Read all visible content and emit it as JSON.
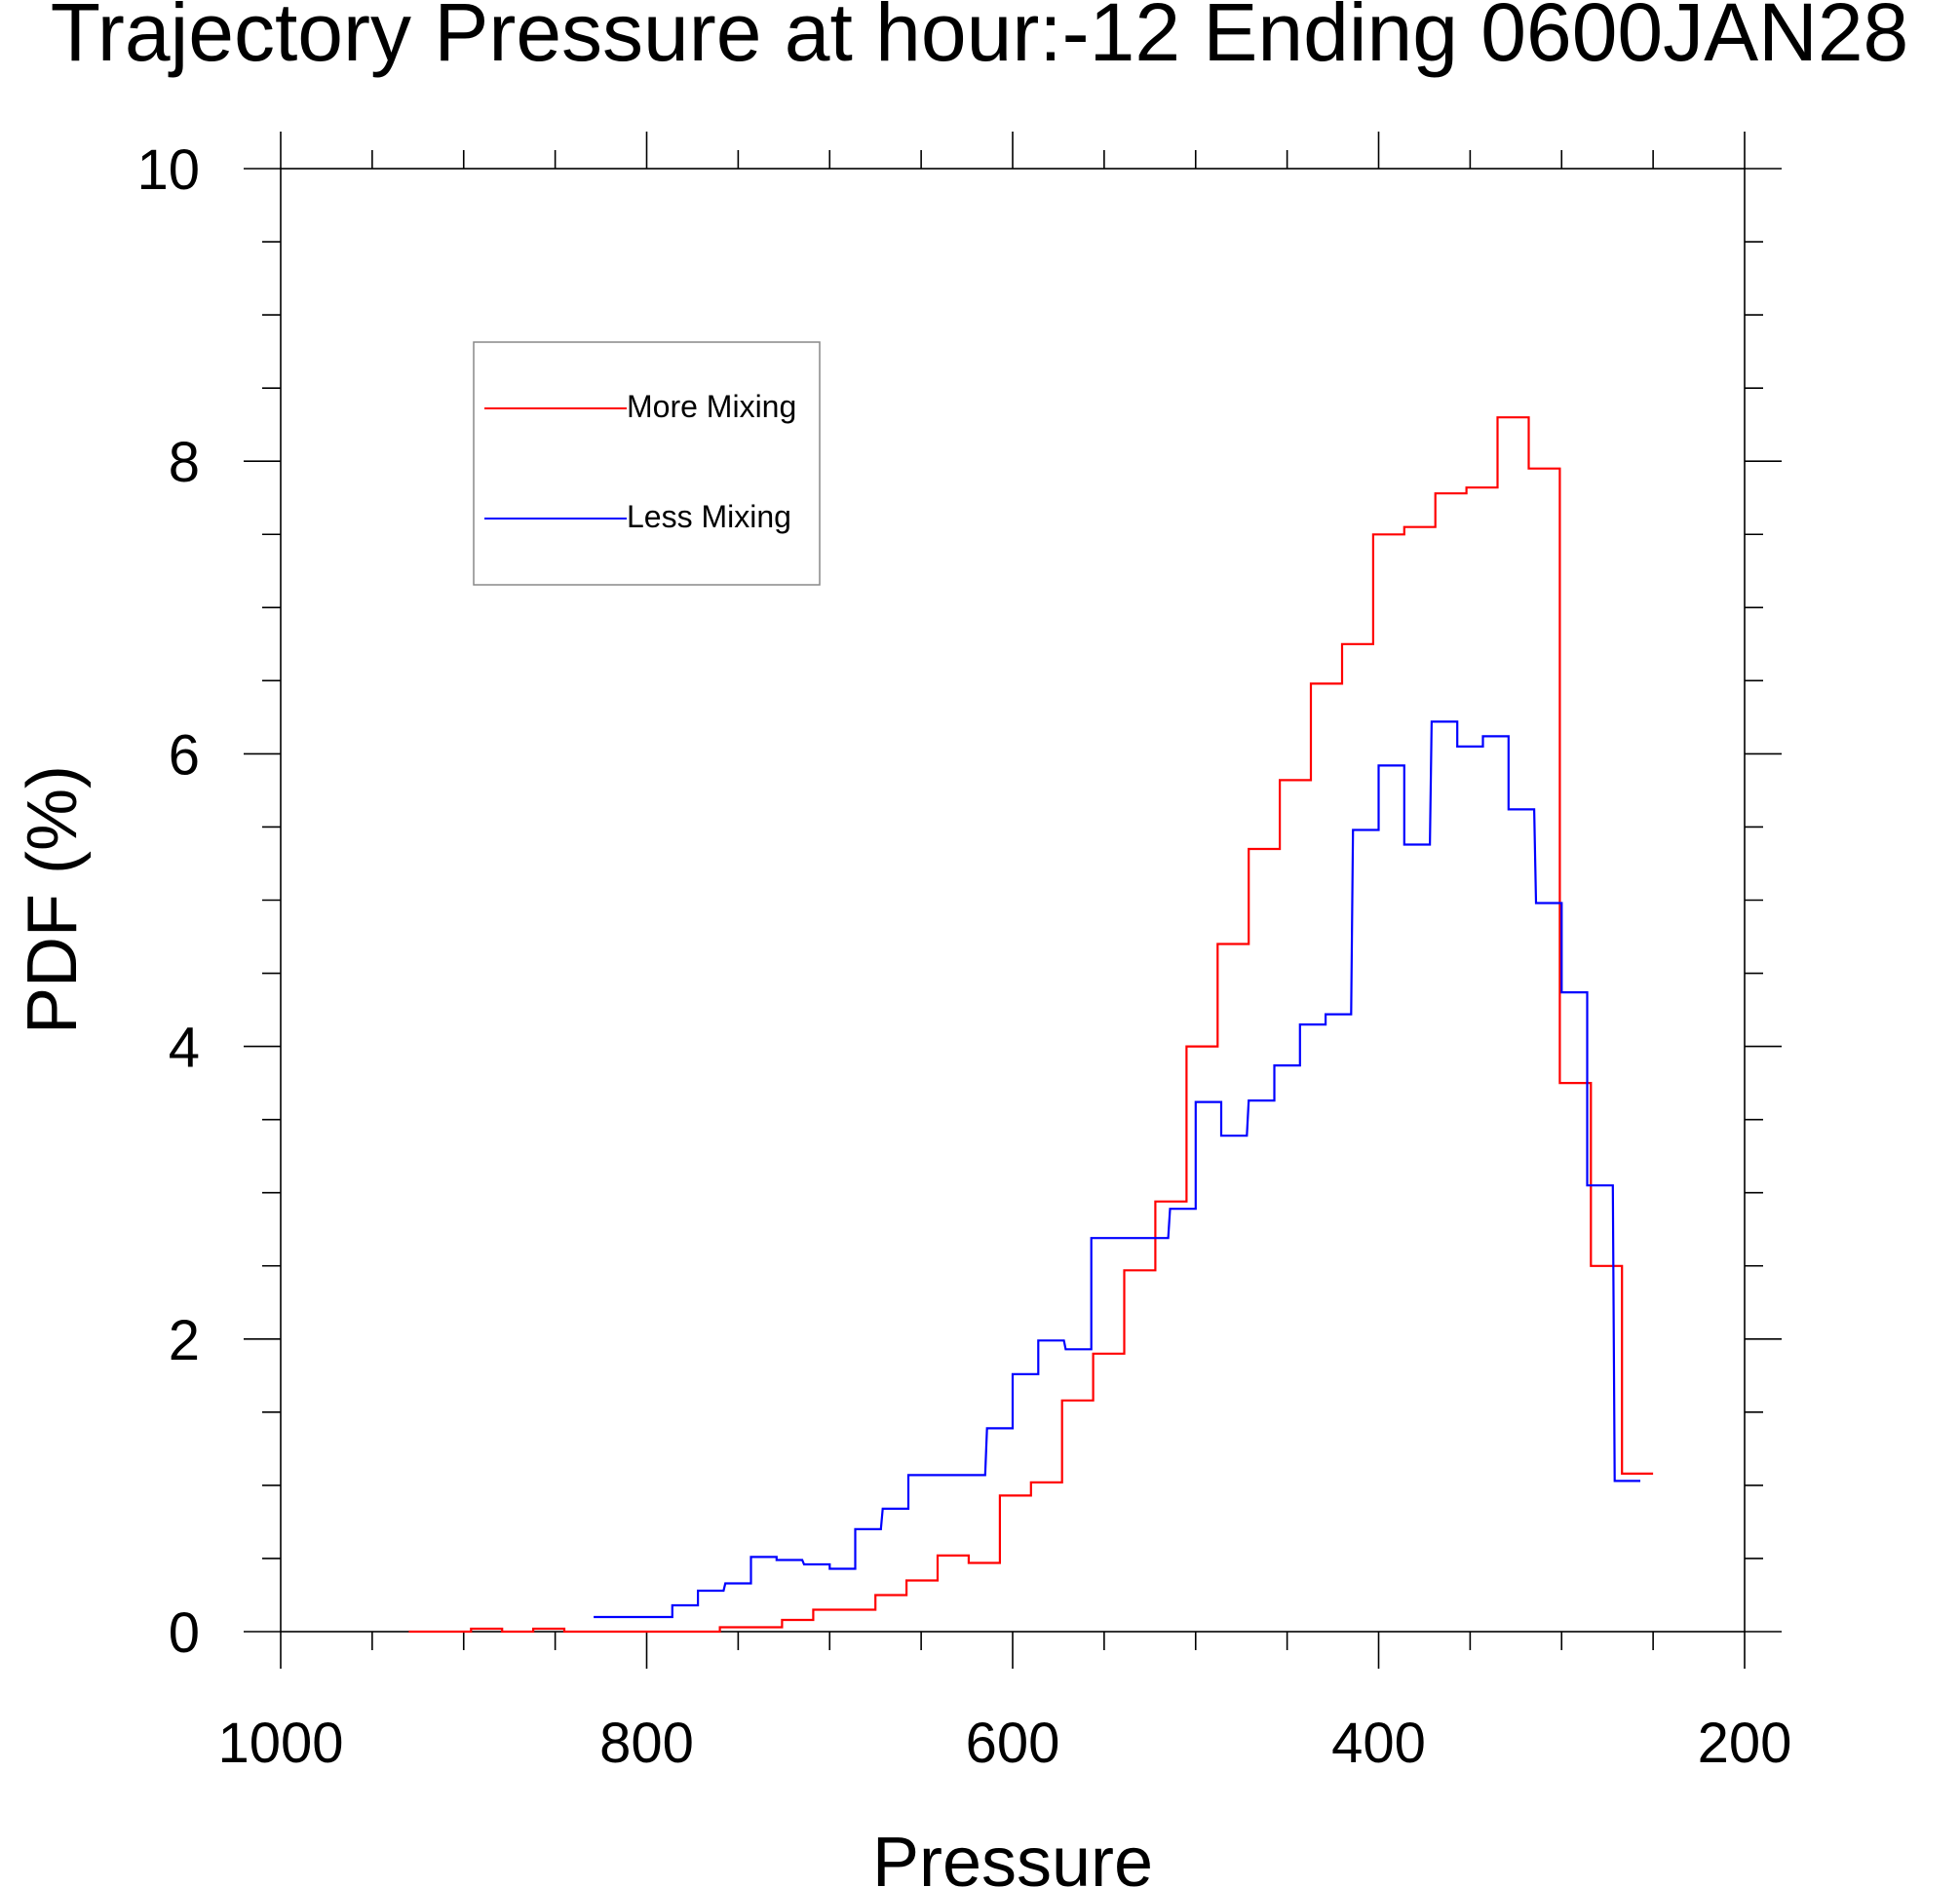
{
  "chart_data": {
    "type": "line",
    "title": "Trajectory Pressure at hour:-12 Ending 0600JAN28",
    "xlabel": "Pressure",
    "ylabel": "PDF (%)",
    "xlim": [
      1000,
      200
    ],
    "ylim": [
      0,
      10
    ],
    "x_reversed": true,
    "x_ticks": [
      1000,
      800,
      600,
      400,
      200
    ],
    "y_ticks": [
      0,
      2,
      4,
      6,
      8,
      10
    ],
    "grid": false,
    "legend_position": "top-left",
    "step": true,
    "series": [
      {
        "name": "More Mixing",
        "color": "#ff0000",
        "x": [
          930,
          913,
          896,
          879,
          862,
          845,
          828,
          811,
          794,
          777,
          760,
          743,
          726,
          709,
          692,
          675,
          658,
          641,
          624,
          607,
          590,
          573,
          556,
          539,
          522,
          505,
          488,
          471,
          454,
          437,
          420,
          403,
          386,
          369,
          352,
          335,
          318,
          301,
          284,
          267
        ],
        "values": [
          0.0,
          0.0,
          0.02,
          0.0,
          0.02,
          0.0,
          0.0,
          0.0,
          0.0,
          0.0,
          0.03,
          0.03,
          0.08,
          0.15,
          0.15,
          0.25,
          0.35,
          0.52,
          0.47,
          0.93,
          1.02,
          1.58,
          1.9,
          2.47,
          2.94,
          4.0,
          4.7,
          5.35,
          5.82,
          6.48,
          6.75,
          7.5,
          7.55,
          7.78,
          7.82,
          8.3,
          7.95,
          3.75,
          2.5,
          1.08
        ]
      },
      {
        "name": "Less Mixing",
        "color": "#0000ff",
        "x": [
          829,
          815,
          800,
          786,
          772,
          757,
          743,
          729,
          714,
          700,
          686,
          671,
          657,
          643,
          629,
          614,
          600,
          586,
          571,
          557,
          543,
          529,
          514,
          500,
          486,
          471,
          457,
          443,
          429,
          414,
          400,
          386,
          371,
          357,
          343,
          329,
          314,
          300,
          286,
          271
        ],
        "values": [
          0.1,
          0.1,
          0.1,
          0.18,
          0.28,
          0.33,
          0.51,
          0.49,
          0.46,
          0.43,
          0.7,
          0.84,
          1.07,
          1.07,
          1.07,
          1.39,
          1.76,
          1.99,
          1.93,
          2.69,
          2.69,
          2.69,
          2.89,
          3.62,
          3.39,
          3.63,
          3.87,
          4.15,
          4.22,
          5.48,
          5.92,
          5.38,
          6.22,
          6.05,
          6.12,
          5.62,
          4.98,
          4.37,
          3.05,
          1.03
        ]
      }
    ]
  }
}
